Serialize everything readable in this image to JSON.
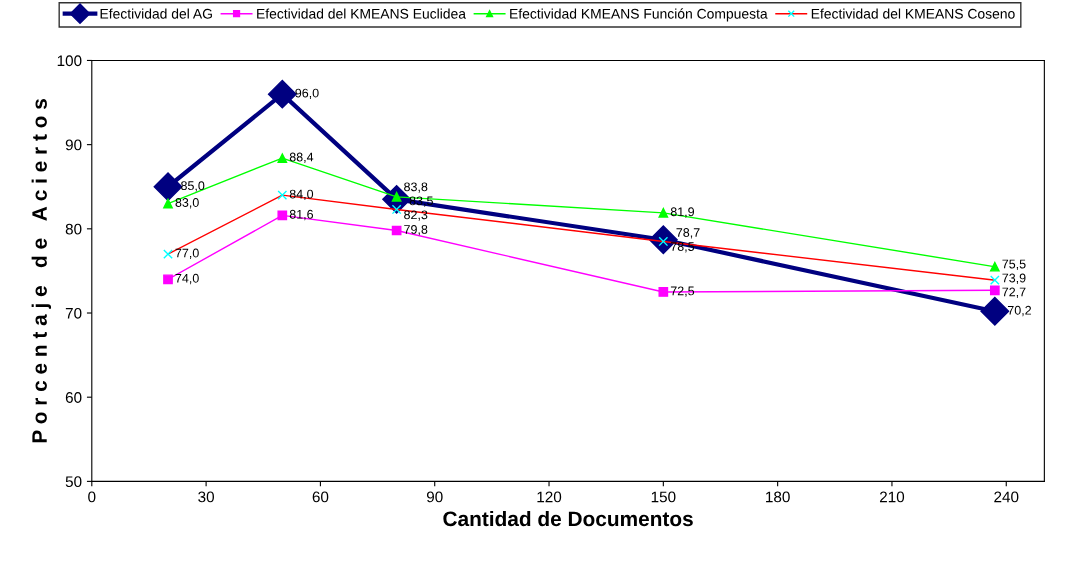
{
  "chart_data": {
    "type": "line",
    "xlabel": "Cantidad de Documentos",
    "ylabel": "P o r c e n t a j e   d e   A c i e r t o s",
    "x": [
      20,
      50,
      80,
      150,
      237
    ],
    "series": [
      {
        "name": "Efectividad del AG",
        "color": "#000080",
        "marker": "diamond",
        "values": [
          85.0,
          96.0,
          83.5,
          78.7,
          70.2
        ],
        "value_labels": [
          "85,0",
          "96,0",
          "83,5",
          "78,7",
          "70,2"
        ]
      },
      {
        "name": "Efectividad del KMEANS Euclidea",
        "color": "#ff00ff",
        "marker": "square",
        "values": [
          74.0,
          81.6,
          79.8,
          72.5,
          72.7
        ],
        "value_labels": [
          "74,0",
          "81,6",
          "79,8",
          "72,5",
          "72,7"
        ]
      },
      {
        "name": "Efectividad KMEANS Función Compuesta",
        "color": "#00ff00",
        "marker": "triangle",
        "values": [
          83.0,
          88.4,
          83.8,
          81.9,
          75.5
        ],
        "value_labels": [
          "83,0",
          "88,4",
          "83,8",
          "81,9",
          "75,5"
        ]
      },
      {
        "name": "Efectividad del KMEANS Coseno",
        "color": "#ff0000",
        "marker": "cross",
        "values": [
          77.0,
          84.0,
          82.3,
          78.5,
          73.9
        ],
        "value_labels": [
          "77,0",
          "84,0",
          "82,3",
          "78,5",
          "73,9"
        ]
      }
    ],
    "xlim": [
      0,
      250
    ],
    "xticks": [
      0,
      30,
      60,
      90,
      120,
      150,
      180,
      210,
      240
    ],
    "ylim": [
      50,
      100
    ],
    "yticks": [
      50,
      60,
      70,
      80,
      90,
      100
    ],
    "grid": false,
    "legend": "top"
  }
}
